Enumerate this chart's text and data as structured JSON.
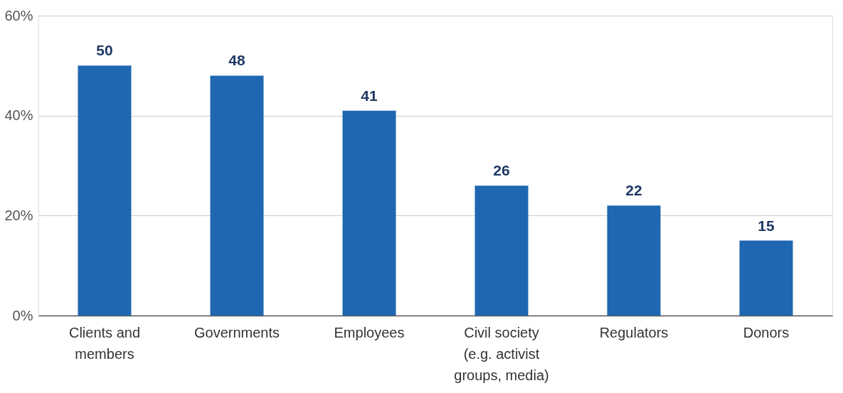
{
  "chart_data": {
    "type": "bar",
    "categories": [
      "Clients and members",
      "Governments",
      "Employees",
      "Civil society (e.g. activist groups, media)",
      "Regulators",
      "Donors"
    ],
    "values": [
      50,
      48,
      41,
      26,
      22,
      15
    ],
    "color": "#1f67b1",
    "ylim": [
      0,
      60
    ],
    "yticks": [
      {
        "value": 0,
        "label": "0%"
      },
      {
        "value": 20,
        "label": "20%"
      },
      {
        "value": 40,
        "label": "40%"
      },
      {
        "value": 60,
        "label": "60%"
      }
    ],
    "grid": "y",
    "data_labels": true
  }
}
